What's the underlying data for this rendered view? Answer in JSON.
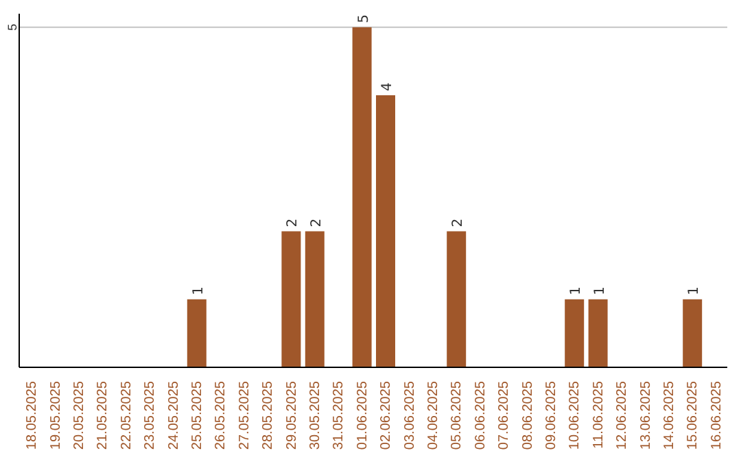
{
  "chart_data": {
    "type": "bar",
    "categories": [
      "18.05.2025",
      "19.05.2025",
      "20.05.2025",
      "21.05.2025",
      "22.05.2025",
      "23.05.2025",
      "24.05.2025",
      "25.05.2025",
      "26.05.2025",
      "27.05.2025",
      "28.05.2025",
      "29.05.2025",
      "30.05.2025",
      "31.05.2025",
      "01.06.2025",
      "02.06.2025",
      "03.06.2025",
      "04.06.2025",
      "05.06.2025",
      "06.06.2025",
      "07.06.2025",
      "08.06.2025",
      "09.06.2025",
      "10.06.2025",
      "11.06.2025",
      "12.06.2025",
      "13.06.2025",
      "14.06.2025",
      "15.06.2025",
      "16.06.2025"
    ],
    "values": [
      0,
      0,
      0,
      0,
      0,
      0,
      0,
      1,
      0,
      0,
      0,
      2,
      2,
      0,
      5,
      4,
      0,
      0,
      2,
      0,
      0,
      0,
      0,
      1,
      1,
      0,
      0,
      0,
      1,
      0
    ],
    "value_labels": [
      null,
      null,
      null,
      null,
      null,
      null,
      null,
      "1",
      null,
      null,
      null,
      "2",
      "2",
      null,
      "5",
      "4",
      null,
      null,
      "2",
      null,
      null,
      null,
      null,
      "1",
      "1",
      null,
      null,
      null,
      "1",
      null
    ],
    "color": "#a0572a",
    "ylim": [
      0,
      5.2
    ],
    "yticks": [
      5
    ],
    "grid": "y"
  }
}
